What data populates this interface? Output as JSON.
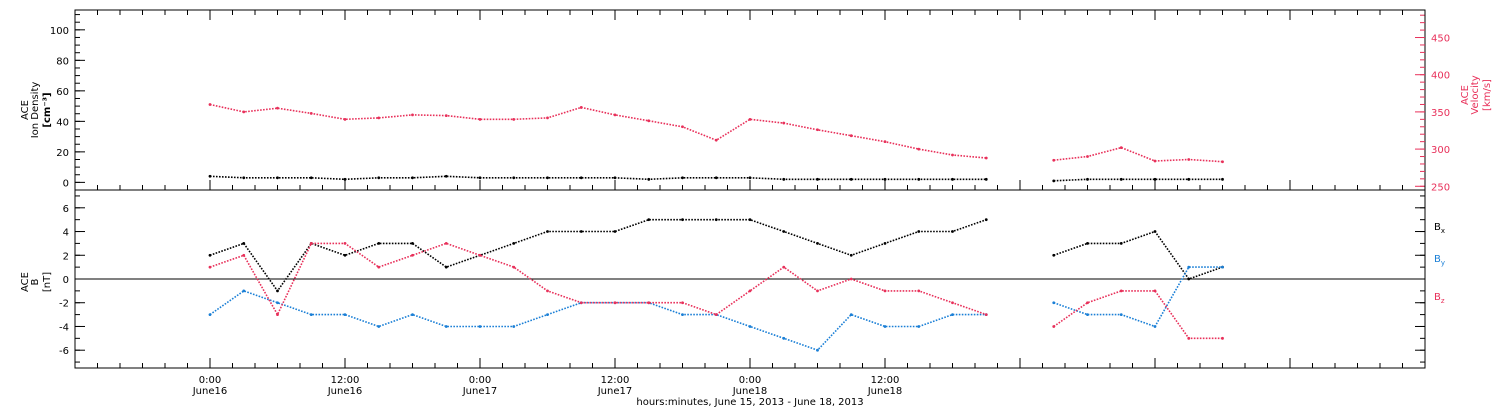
{
  "colors": {
    "density": "#000000",
    "velocity": "#e8305a",
    "bx": "#000000",
    "by": "#1a7fd6",
    "bz": "#e8305a",
    "axis": "#000000"
  },
  "chart_data": [
    {
      "type": "scatter",
      "panel": "top",
      "ylabel_left": [
        "ACE",
        "Ion Density",
        "[cm⁻³]"
      ],
      "ylabel_right": [
        "ACE",
        "Velocity",
        "[km/s]"
      ],
      "ylim_left": [
        -5,
        113
      ],
      "ylim_right": [
        245,
        487
      ],
      "yticks_left": [
        0,
        20,
        40,
        60,
        80,
        100
      ],
      "yticks_right": [
        250,
        300,
        350,
        400,
        450
      ],
      "series": [
        {
          "axis": "left",
          "color": "#000000",
          "x": [
            0,
            3,
            6,
            9,
            12,
            15,
            18,
            21,
            24,
            27,
            30,
            33,
            36,
            39,
            42,
            45,
            48,
            51,
            54,
            57,
            60,
            63,
            66,
            69,
            72,
            75,
            78,
            81,
            84,
            87,
            90
          ],
          "y": [
            4,
            3,
            3,
            3,
            2,
            3,
            3,
            4,
            3,
            3,
            3,
            3,
            3,
            2,
            3,
            3,
            3,
            2,
            2,
            2,
            2,
            2,
            2,
            2,
            null,
            1,
            2,
            2,
            2,
            2,
            2
          ]
        },
        {
          "axis": "right",
          "color": "#e8305a",
          "x": [
            0,
            3,
            6,
            9,
            12,
            15,
            18,
            21,
            24,
            27,
            30,
            33,
            36,
            39,
            42,
            45,
            48,
            51,
            54,
            57,
            60,
            63,
            66,
            69,
            72,
            75,
            78,
            81,
            84,
            87,
            90
          ],
          "y": [
            360,
            350,
            355,
            348,
            340,
            342,
            346,
            345,
            340,
            340,
            342,
            356,
            346,
            338,
            330,
            312,
            340,
            335,
            326,
            318,
            310,
            300,
            292,
            288,
            null,
            285,
            290,
            302,
            284,
            286,
            283
          ]
        }
      ]
    },
    {
      "type": "scatter",
      "panel": "bottom",
      "ylabel_left": [
        "ACE",
        "B",
        "[nT]"
      ],
      "legend": [
        "Bx",
        "By",
        "Bz"
      ],
      "ylim": [
        -7.5,
        7.5
      ],
      "yticks": [
        -6,
        -4,
        -2,
        0,
        2,
        4,
        6
      ],
      "series": [
        {
          "name": "Bx",
          "color": "#000000",
          "x": [
            0,
            3,
            6,
            9,
            12,
            15,
            18,
            21,
            24,
            27,
            30,
            33,
            36,
            39,
            42,
            45,
            48,
            51,
            54,
            57,
            60,
            63,
            66,
            69,
            72,
            75,
            78,
            81,
            84,
            87,
            90
          ],
          "y": [
            2,
            3,
            -1,
            3,
            2,
            3,
            3,
            1,
            2,
            3,
            4,
            4,
            4,
            5,
            5,
            5,
            5,
            4,
            3,
            2,
            3,
            4,
            4,
            5,
            null,
            2,
            3,
            3,
            4,
            0,
            1
          ]
        },
        {
          "name": "By",
          "color": "#1a7fd6",
          "x": [
            0,
            3,
            6,
            9,
            12,
            15,
            18,
            21,
            24,
            27,
            30,
            33,
            36,
            39,
            42,
            45,
            48,
            51,
            54,
            57,
            60,
            63,
            66,
            69,
            72,
            75,
            78,
            81,
            84,
            87,
            90
          ],
          "y": [
            -3,
            -1,
            -2,
            -3,
            -3,
            -4,
            -3,
            -4,
            -4,
            -4,
            -3,
            -2,
            -2,
            -2,
            -3,
            -3,
            -4,
            -5,
            -6,
            -3,
            -4,
            -4,
            -3,
            -3,
            null,
            -2,
            -3,
            -3,
            -4,
            1,
            1
          ]
        },
        {
          "name": "Bz",
          "color": "#e8305a",
          "x": [
            0,
            3,
            6,
            9,
            12,
            15,
            18,
            21,
            24,
            27,
            30,
            33,
            36,
            39,
            42,
            45,
            48,
            51,
            54,
            57,
            60,
            63,
            66,
            69,
            72,
            75,
            78,
            81,
            84,
            87,
            90
          ],
          "y": [
            1,
            2,
            -3,
            3,
            3,
            1,
            2,
            3,
            2,
            1,
            -1,
            -2,
            -2,
            -2,
            -2,
            -3,
            -1,
            1,
            -1,
            0,
            -1,
            -1,
            -2,
            -3,
            null,
            -4,
            -2,
            -1,
            -1,
            -5,
            -5
          ]
        }
      ]
    }
  ],
  "x_axis": {
    "range_hours": [
      -12,
      108
    ],
    "labels": [
      {
        "hour": 0,
        "time": "0:00",
        "day": "June16"
      },
      {
        "hour": 12,
        "time": "12:00",
        "day": "June16"
      },
      {
        "hour": 24,
        "time": "0:00",
        "day": "June17"
      },
      {
        "hour": 36,
        "time": "12:00",
        "day": "June17"
      },
      {
        "hour": 48,
        "time": "0:00",
        "day": "June18"
      },
      {
        "hour": 60,
        "time": "12:00",
        "day": "June18"
      }
    ],
    "title": "hours:minutes, June 15, 2013 - June 18, 2013"
  },
  "legend_labels": {
    "bx": "B",
    "bx_sub": "x",
    "by": "B",
    "by_sub": "y",
    "bz": "B",
    "bz_sub": "z"
  }
}
